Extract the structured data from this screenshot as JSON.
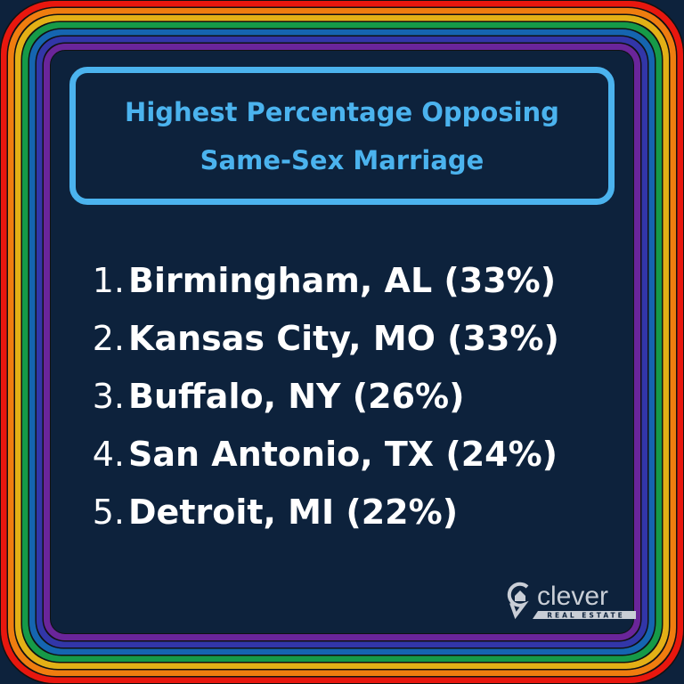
{
  "title": {
    "line1": "Highest Percentage Opposing",
    "line2": "Same-Sex Marriage"
  },
  "rankings": [
    {
      "rank": "1.",
      "label": "Birmingham, AL (33%)"
    },
    {
      "rank": "2.",
      "label": "Kansas City, MO (33%)"
    },
    {
      "rank": "3.",
      "label": "Buffalo, NY (26%)"
    },
    {
      "rank": "4.",
      "label": "San Antonio, TX (24%)"
    },
    {
      "rank": "5.",
      "label": "Detroit, MI (22%)"
    }
  ],
  "logo": {
    "name": "clever",
    "tagline": "REAL ESTATE"
  },
  "colors": {
    "background": "#0d223c",
    "accent": "#4bb3ee",
    "rainbow": [
      "#e8170e",
      "#ef7d0f",
      "#e3b016",
      "#169a48",
      "#1565b0",
      "#3236a8",
      "#6a259a"
    ]
  }
}
